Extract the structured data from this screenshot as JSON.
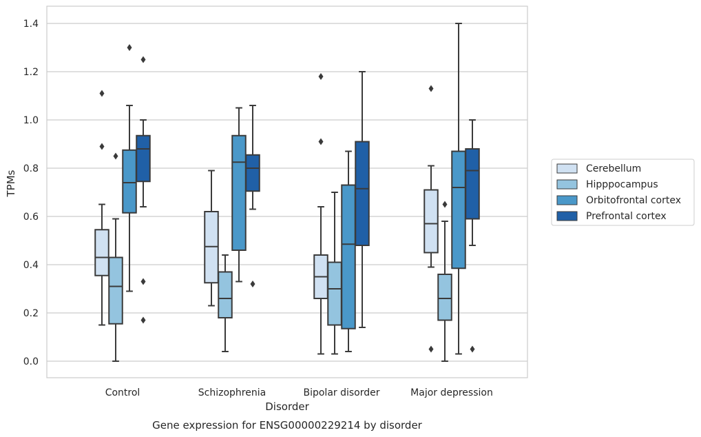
{
  "chart_data": {
    "type": "box",
    "caption": "Gene expression for ENSG00000229214 by disorder",
    "xlabel": "Disorder",
    "ylabel": "TPMs",
    "ylim": [
      -0.07,
      1.47
    ],
    "yticks": [
      0.0,
      0.2,
      0.4,
      0.6,
      0.8,
      1.0,
      1.2,
      1.4
    ],
    "ytick_labels": [
      "0.0",
      "0.2",
      "0.4",
      "0.6",
      "0.8",
      "1.0",
      "1.2",
      "1.4"
    ],
    "grid": "horizontal",
    "legend_position": "right",
    "categories": [
      "Control",
      "Schizophrenia",
      "Bipolar disorder",
      "Major depression"
    ],
    "series": [
      {
        "name": "Cerebellum",
        "color": "#d0e1f2",
        "boxes": [
          {
            "whislo": 0.15,
            "q1": 0.355,
            "med": 0.43,
            "q3": 0.545,
            "whishi": 0.65,
            "fliers": [
              0.89,
              1.11
            ]
          },
          {
            "whislo": 0.23,
            "q1": 0.325,
            "med": 0.475,
            "q3": 0.62,
            "whishi": 0.79,
            "fliers": []
          },
          {
            "whislo": 0.03,
            "q1": 0.26,
            "med": 0.35,
            "q3": 0.44,
            "whishi": 0.64,
            "fliers": [
              0.91,
              1.18
            ]
          },
          {
            "whislo": 0.39,
            "q1": 0.45,
            "med": 0.57,
            "q3": 0.71,
            "whishi": 0.81,
            "fliers": [
              0.05,
              1.13
            ]
          }
        ]
      },
      {
        "name": "Hipppocampus",
        "color": "#94c4df",
        "boxes": [
          {
            "whislo": 0.0,
            "q1": 0.155,
            "med": 0.31,
            "q3": 0.43,
            "whishi": 0.59,
            "fliers": [
              0.85
            ]
          },
          {
            "whislo": 0.04,
            "q1": 0.18,
            "med": 0.26,
            "q3": 0.37,
            "whishi": 0.44,
            "fliers": []
          },
          {
            "whislo": 0.03,
            "q1": 0.15,
            "med": 0.3,
            "q3": 0.41,
            "whishi": 0.7,
            "fliers": []
          },
          {
            "whislo": 0.0,
            "q1": 0.17,
            "med": 0.26,
            "q3": 0.36,
            "whishi": 0.58,
            "fliers": [
              0.65
            ]
          }
        ]
      },
      {
        "name": "Orbitofrontal cortex",
        "color": "#4a98c9",
        "boxes": [
          {
            "whislo": 0.29,
            "q1": 0.615,
            "med": 0.74,
            "q3": 0.875,
            "whishi": 1.06,
            "fliers": [
              1.3
            ]
          },
          {
            "whislo": 0.33,
            "q1": 0.46,
            "med": 0.825,
            "q3": 0.935,
            "whishi": 1.05,
            "fliers": []
          },
          {
            "whislo": 0.04,
            "q1": 0.135,
            "med": 0.485,
            "q3": 0.73,
            "whishi": 0.87,
            "fliers": []
          },
          {
            "whislo": 0.03,
            "q1": 0.385,
            "med": 0.72,
            "q3": 0.87,
            "whishi": 1.4,
            "fliers": []
          }
        ]
      },
      {
        "name": "Prefrontal cortex",
        "color": "#2060a7",
        "boxes": [
          {
            "whislo": 0.64,
            "q1": 0.745,
            "med": 0.88,
            "q3": 0.935,
            "whishi": 1.0,
            "fliers": [
              0.17,
              0.33,
              1.25
            ]
          },
          {
            "whislo": 0.63,
            "q1": 0.705,
            "med": 0.8,
            "q3": 0.855,
            "whishi": 1.06,
            "fliers": [
              0.32
            ]
          },
          {
            "whislo": 0.14,
            "q1": 0.48,
            "med": 0.715,
            "q3": 0.91,
            "whishi": 1.2,
            "fliers": []
          },
          {
            "whislo": 0.48,
            "q1": 0.59,
            "med": 0.79,
            "q3": 0.88,
            "whishi": 1.0,
            "fliers": [
              0.05
            ]
          }
        ]
      }
    ]
  }
}
